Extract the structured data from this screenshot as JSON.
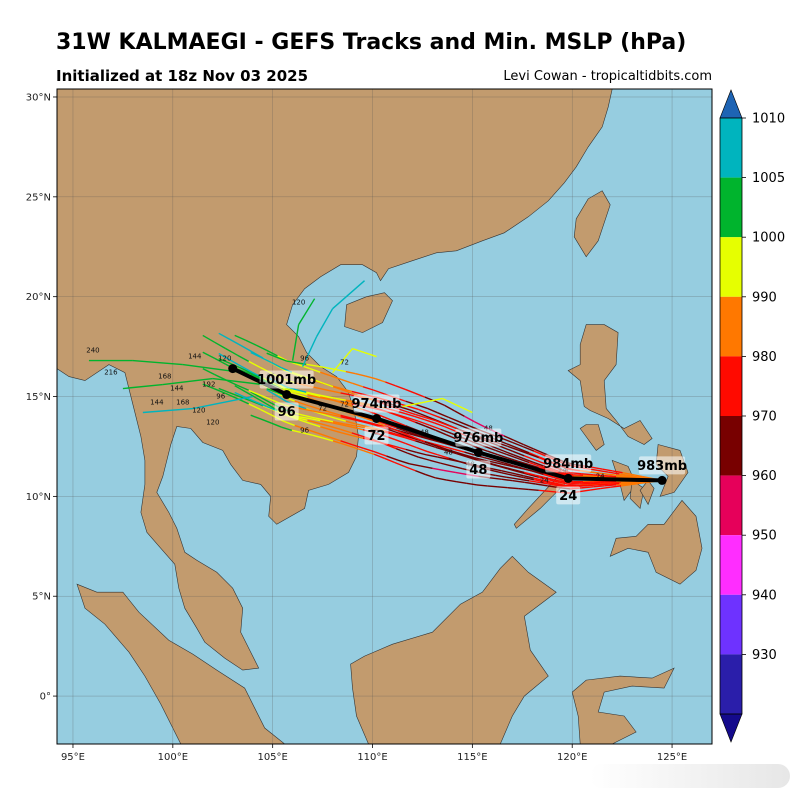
{
  "header": {
    "title": "31W KALMAEGI - GEFS Tracks and Min. MSLP (hPa)",
    "subtitle": "Initialized at 18z Nov 03 2025",
    "credit": "Levi Cowan - tropicaltidbits.com"
  },
  "axes": {
    "lon_ticks": [
      "95°E",
      "100°E",
      "105°E",
      "110°E",
      "115°E",
      "120°E",
      "125°E"
    ],
    "lat_ticks": [
      "30°N",
      "25°N",
      "20°N",
      "15°N",
      "10°N",
      "5°N",
      "0°"
    ],
    "lon_range": [
      94.2,
      127.0
    ],
    "lat_range": [
      -2.4,
      30.4
    ]
  },
  "colorbar": {
    "labels": [
      "1010",
      "1005",
      "1000",
      "990",
      "980",
      "970",
      "960",
      "950",
      "940",
      "930"
    ],
    "colors": [
      "#00b4be",
      "#00b42d",
      "#e6ff00",
      "#ff7800",
      "#ff0a00",
      "#780000",
      "#e6005a",
      "#ff2dff",
      "#6e32ff",
      "#2a1eaa"
    ],
    "top_color": "#1e64b4",
    "bottom_color": "#140a8c"
  },
  "mean_track": {
    "points": [
      {
        "lon": 124.5,
        "lat": 10.8,
        "label_mb": "983mb",
        "label_hr": ""
      },
      {
        "lon": 119.8,
        "lat": 10.9,
        "label_mb": "984mb",
        "label_hr": "24"
      },
      {
        "lon": 115.3,
        "lat": 12.2,
        "label_mb": "976mb",
        "label_hr": "48"
      },
      {
        "lon": 110.2,
        "lat": 13.9,
        "label_mb": "974mb",
        "label_hr": "72"
      },
      {
        "lon": 105.7,
        "lat": 15.1,
        "label_mb": "1001mb",
        "label_hr": "96"
      },
      {
        "lon": 103.0,
        "lat": 16.4,
        "label_mb": "",
        "label_hr": ""
      }
    ]
  },
  "member_labels": [
    "240",
    "216",
    "192",
    "168",
    "144",
    "120",
    "96",
    "72",
    "48",
    "24"
  ],
  "map_colors": {
    "ocean": "#96cde0",
    "land": "#c29b6e"
  }
}
